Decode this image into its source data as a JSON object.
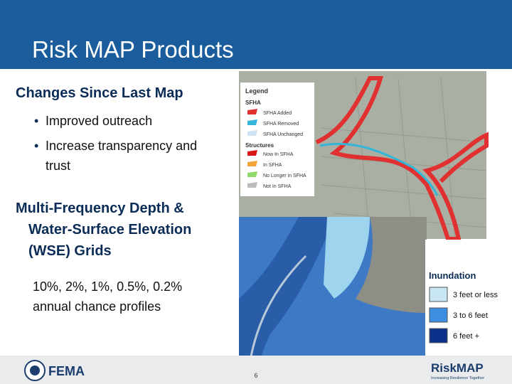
{
  "header": {
    "title": "Risk MAP Products"
  },
  "sections": [
    {
      "heading": "Changes Since Last Map",
      "bullets": [
        "Improved outreach",
        "Increase transparency and trust"
      ]
    },
    {
      "heading": "Multi-Frequency Depth & Water-Surface Elevation (WSE) Grids",
      "text": "10%, 2%, 1%, 0.5%, 0.2% annual chance profiles"
    }
  ],
  "map_legend": {
    "title": "Legend",
    "groups": [
      {
        "title": "SFHA",
        "items": [
          "SFHA Added",
          "SFHA Removed",
          "SFHA Unchanged"
        ]
      },
      {
        "title": "Structures",
        "items": [
          "Now In SFHA",
          "In SFHA",
          "No Longer in SFHA",
          "Not In SFHA"
        ]
      }
    ]
  },
  "inundation_legend": {
    "title": "Inundation",
    "items": [
      "3 feet or less",
      "3 to 6 feet",
      "6 feet +"
    ]
  },
  "footer": {
    "logo": "FEMA",
    "page": "6",
    "brand": "RiskMAP",
    "tagline": "Increasing Resilience Together"
  }
}
